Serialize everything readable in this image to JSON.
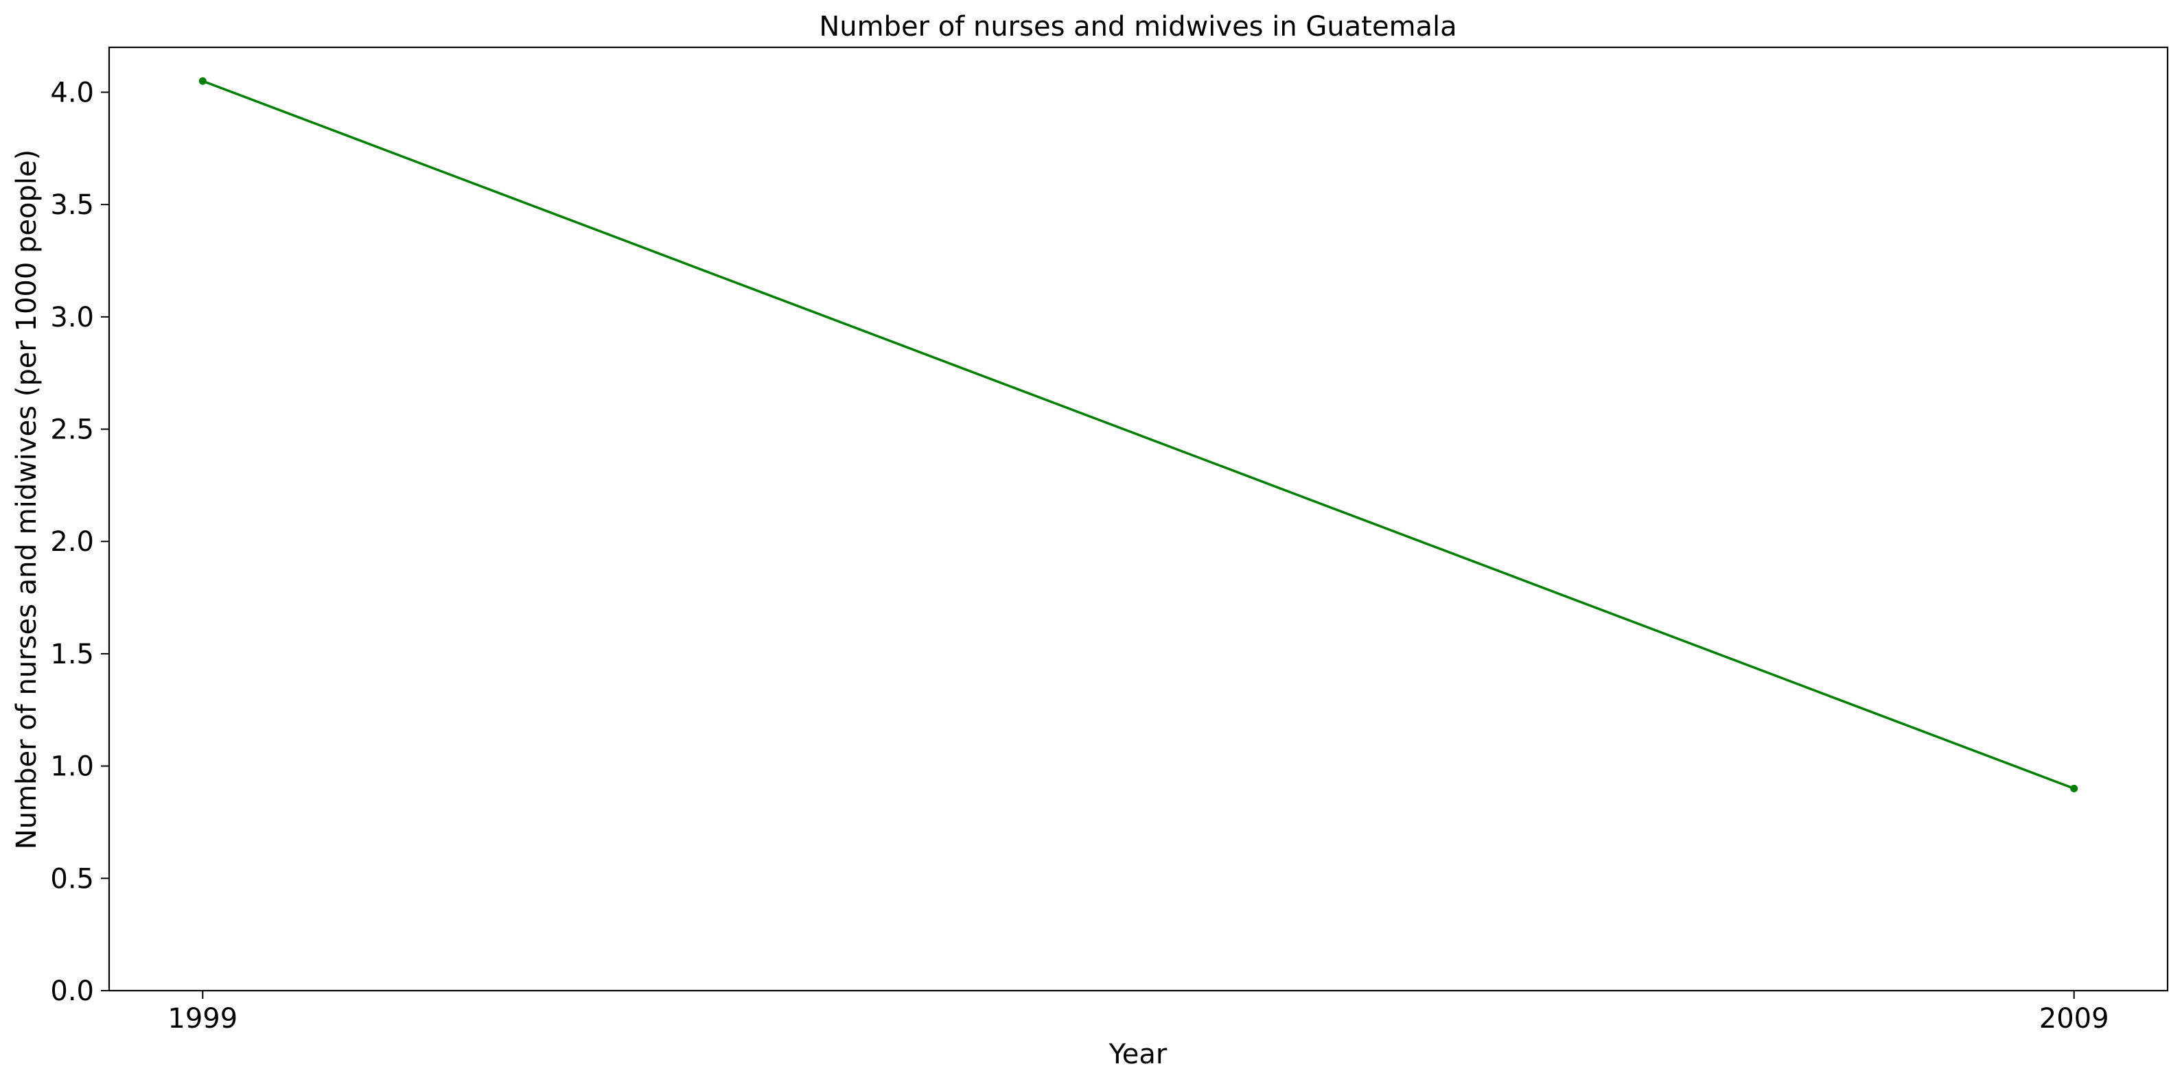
{
  "chart_data": {
    "type": "line",
    "title": "Number of nurses and midwives in Guatemala",
    "xlabel": "Year",
    "ylabel": "Number of nurses and midwives (per 1000 people)",
    "x": [
      1999,
      2009
    ],
    "series": [
      {
        "values": [
          4.05,
          0.9
        ],
        "color": "#008000"
      }
    ],
    "xticks": [
      "1999",
      "2009"
    ],
    "yticks": [
      "0.0",
      "0.5",
      "1.0",
      "1.5",
      "2.0",
      "2.5",
      "3.0",
      "3.5",
      "4.0"
    ],
    "xlim": [
      1998.5,
      2009.5
    ],
    "ylim": [
      0,
      4.2
    ],
    "grid": false,
    "legend": "none"
  }
}
